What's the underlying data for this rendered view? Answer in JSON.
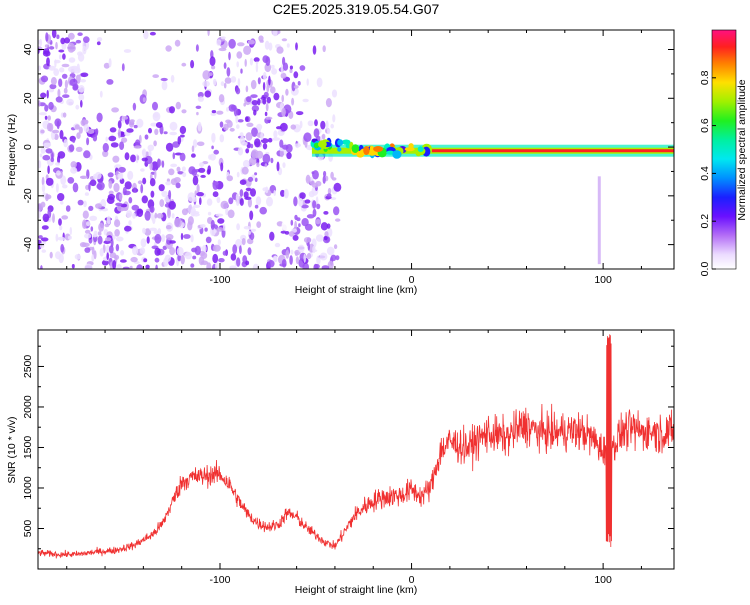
{
  "title": "C2E5.2025.319.05.54.G07",
  "colors": {
    "snr_line": "#f03030",
    "colormap": [
      "#ffffff",
      "#ece0ff",
      "#cda8f5",
      "#9a52f2",
      "#7a1cf0",
      "#4a10e8",
      "#1a20ff",
      "#00b8f8",
      "#00f0c0",
      "#20f020",
      "#a8f000",
      "#ffd800",
      "#ff7800",
      "#ff2020",
      "#ff1080"
    ]
  },
  "chart_data": [
    {
      "type": "heatmap",
      "title": "C2E5.2025.319.05.54.G07",
      "xlabel": "Height of straight line (km)",
      "ylabel": "Frequency (Hz)",
      "xlim": [
        -195,
        137
      ],
      "ylim": [
        -50,
        48
      ],
      "xticks": [
        -100,
        0,
        100
      ],
      "xtick_labels": [
        "-100",
        "0",
        "100"
      ],
      "yticks": [
        -40,
        -20,
        0,
        20,
        40
      ],
      "ytick_labels": [
        "-40",
        "-20",
        "0",
        "20",
        "40"
      ],
      "colorbar": {
        "label": "Normalized spectral amplitude",
        "range": [
          0,
          1
        ],
        "ticks": [
          0.0,
          0.2,
          0.4,
          0.6,
          0.8
        ],
        "tick_labels": [
          "0.0",
          "0.2",
          "0.4",
          "0.6",
          "0.8"
        ]
      },
      "features": [
        {
          "name": "carrier trace",
          "x_range": [
            -52,
            137
          ],
          "frequency_hz": -1.5,
          "peak_amplitude": 0.9
        },
        {
          "name": "noise band",
          "x_range": [
            -195,
            -38
          ],
          "frequency_range_hz": [
            -50,
            48
          ],
          "amplitude_range": [
            0.1,
            0.3
          ]
        },
        {
          "name": "spike",
          "x": 98,
          "frequency_range_hz": [
            -48,
            -12
          ]
        }
      ]
    },
    {
      "type": "line",
      "xlabel": "Height of straight line (km)",
      "ylabel": "SNR (10 * v/v)",
      "xlim": [
        -195,
        137
      ],
      "ylim": [
        0,
        2950
      ],
      "xticks": [
        -100,
        0,
        100
      ],
      "xtick_labels": [
        "-100",
        "0",
        "100"
      ],
      "yticks": [
        500,
        1000,
        1500,
        2000,
        2500
      ],
      "ytick_labels": [
        "500",
        "1000",
        "1500",
        "2000",
        "2500"
      ],
      "series": [
        {
          "name": "SNR",
          "x": [
            -195,
            -185,
            -175,
            -165,
            -155,
            -145,
            -135,
            -130,
            -125,
            -120,
            -115,
            -110,
            -105,
            -100,
            -95,
            -90,
            -85,
            -80,
            -75,
            -70,
            -65,
            -60,
            -55,
            -50,
            -45,
            -40,
            -35,
            -30,
            -25,
            -20,
            -15,
            -10,
            -5,
            0,
            5,
            10,
            15,
            20,
            25,
            30,
            35,
            40,
            45,
            50,
            55,
            60,
            65,
            70,
            75,
            80,
            85,
            90,
            95,
            100,
            102,
            105,
            110,
            115,
            120,
            125,
            130,
            137
          ],
          "values": [
            200,
            180,
            180,
            210,
            230,
            290,
            430,
            560,
            820,
            1070,
            1130,
            1140,
            1160,
            1170,
            1040,
            830,
            660,
            560,
            520,
            540,
            690,
            640,
            510,
            420,
            330,
            280,
            460,
            650,
            760,
            840,
            880,
            900,
            910,
            980,
            900,
            1000,
            1450,
            1570,
            1520,
            1500,
            1600,
            1680,
            1640,
            1620,
            1720,
            1780,
            1700,
            1690,
            1680,
            1700,
            1700,
            1690,
            1600,
            1450,
            1620,
            1500,
            1700,
            1720,
            1700,
            1700,
            1680,
            1700
          ]
        }
      ],
      "spikes": [
        {
          "x": 103,
          "max": 2900,
          "min": 250
        }
      ]
    }
  ]
}
